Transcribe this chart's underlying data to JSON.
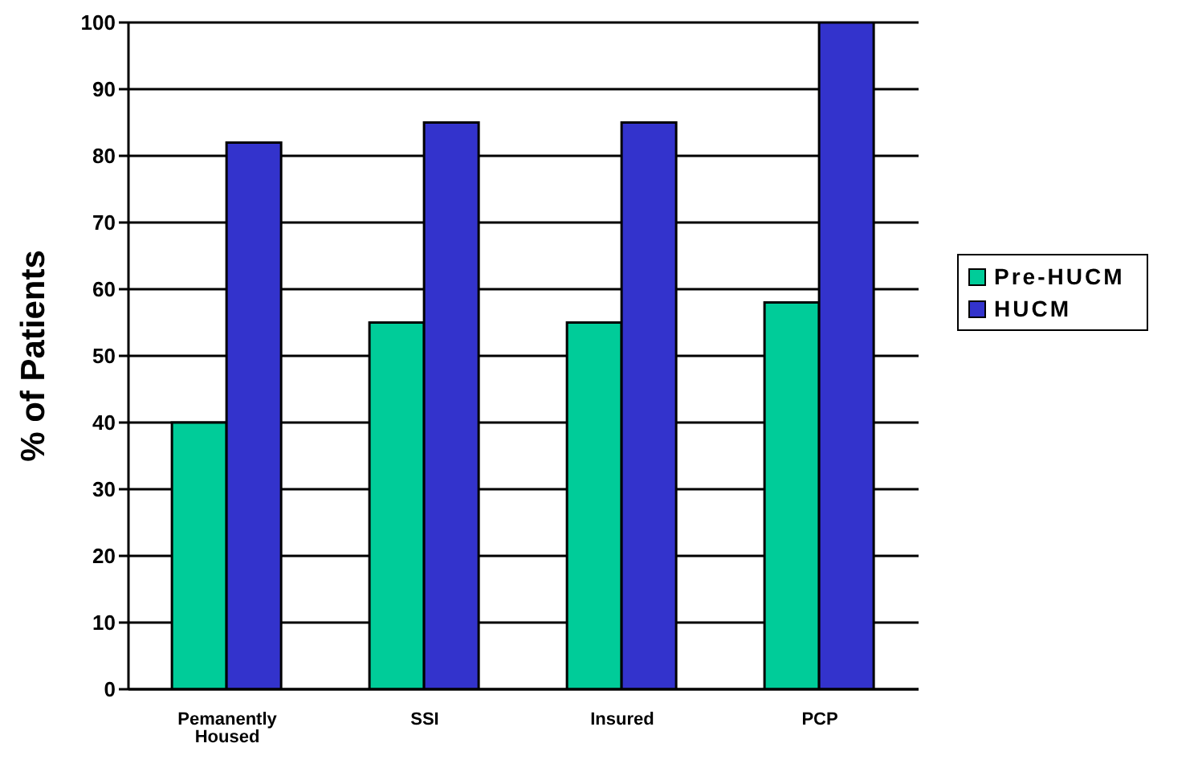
{
  "chart_data": {
    "type": "bar",
    "ylabel": "% of Patients",
    "categories": [
      "Pemanently Housed",
      "SSI",
      "Insured",
      "PCP"
    ],
    "series": [
      {
        "name": "Pre-HUCM",
        "color": "#00cc99",
        "values": [
          40,
          55,
          55,
          58
        ]
      },
      {
        "name": "HUCM",
        "color": "#3333cc",
        "values": [
          82,
          85,
          85,
          100
        ]
      }
    ],
    "ylim": [
      0,
      100
    ],
    "yticks": [
      0,
      10,
      20,
      30,
      40,
      50,
      60,
      70,
      80,
      90,
      100
    ],
    "grid": "y",
    "legend": "right"
  }
}
